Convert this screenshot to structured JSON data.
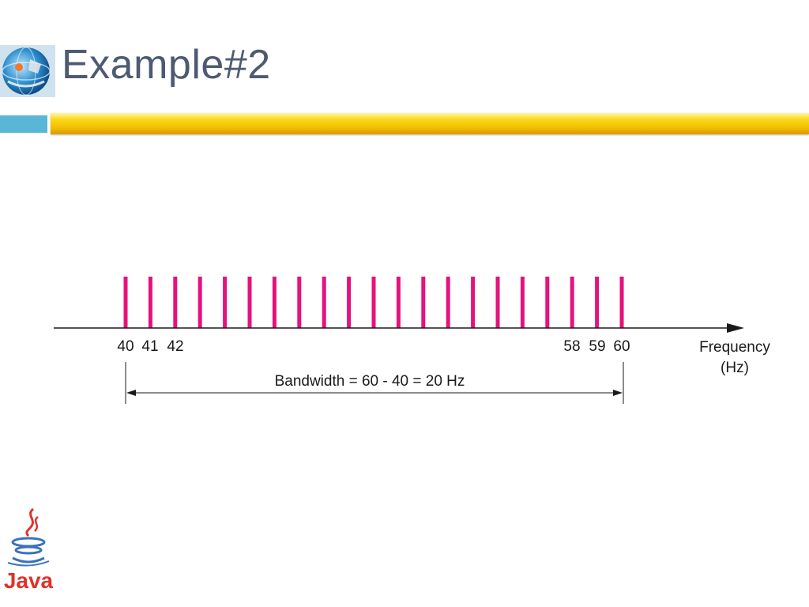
{
  "slide": {
    "title": "Example#2",
    "colors": {
      "title": "#4e5a72",
      "accent_blue": "#5ab6d6",
      "accent_gold": "#f2bd00",
      "spectrum": "#e5127d"
    }
  },
  "icons": {
    "globe_logo": "globe-logo-icon",
    "java_logo": "java-logo-icon"
  },
  "logo": {
    "java_text": "Java"
  },
  "diagram": {
    "spectrum_start_hz": 40,
    "spectrum_end_hz": 60,
    "component_count": 21,
    "tick_labels": [
      "40",
      "41",
      "42",
      "58",
      "59",
      "60"
    ],
    "axis_label_line1": "Frequency",
    "axis_label_line2": "(Hz)",
    "bandwidth_label": "Bandwidth = 60 - 40 = 20 Hz"
  }
}
